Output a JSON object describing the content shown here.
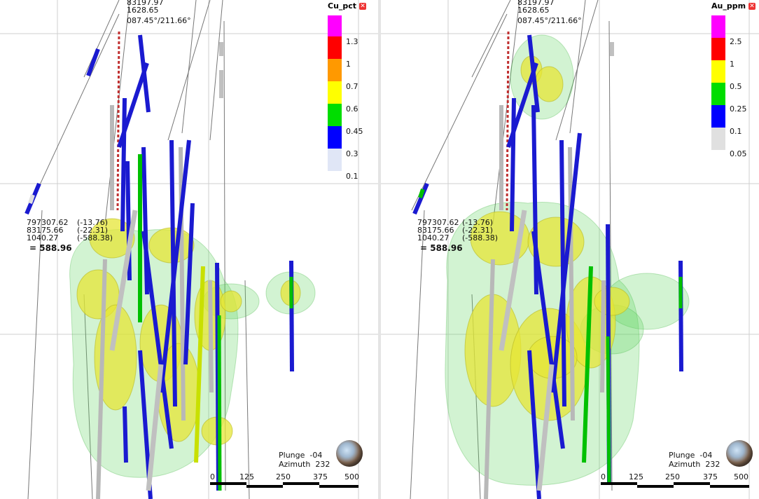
{
  "panels": [
    {
      "top_readout": {
        "line1": "83197.97",
        "line2": "1628.65",
        "angles": "087.45°/211.66°"
      },
      "cursor": {
        "x": "797307.62",
        "dx": "(-13.76)",
        "y": "83175.66",
        "dy": "(-22.31)",
        "z": "1040.27",
        "dz": "(-588.38)",
        "distance": "= 588.96"
      },
      "legend": {
        "title": "Cu_pct",
        "close_icon": "close-icon",
        "labels": [
          "1.3",
          "1",
          "0.7",
          "0.6",
          "0.45",
          "0.3",
          "0.1"
        ],
        "colors": [
          "#ff00ff",
          "#ff0000",
          "#ff9900",
          "#ffff00",
          "#00dd00",
          "#0000ff",
          "#e0e6f6"
        ]
      },
      "orientation": {
        "plunge": "Plunge  -04",
        "azimuth": "Azimuth  232"
      },
      "scale": {
        "ticks": [
          "0",
          "125",
          "250",
          "375",
          "500"
        ]
      },
      "globe_icon": "globe-icon"
    },
    {
      "top_readout": {
        "line1": "83197.97",
        "line2": "1628.65",
        "angles": "087.45°/211.66°"
      },
      "cursor": {
        "x": "797307.62",
        "dx": "(-13.76)",
        "y": "83175.66",
        "dy": "(-22.31)",
        "z": "1040.27",
        "dz": "(-588.38)",
        "distance": "= 588.96"
      },
      "legend": {
        "title": "Au_ppm",
        "close_icon": "close-icon",
        "labels": [
          "2.5",
          "1",
          "0.5",
          "0.25",
          "0.1",
          "0.05"
        ],
        "colors": [
          "#ff00ff",
          "#ff0000",
          "#ffff00",
          "#00dd00",
          "#0000ff",
          "#e0e0e0"
        ]
      },
      "orientation": {
        "plunge": "Plunge  -04",
        "azimuth": "Azimuth  232"
      },
      "scale": {
        "ticks": [
          "0",
          "125",
          "250",
          "375",
          "500"
        ]
      },
      "globe_icon": "globe-icon"
    }
  ]
}
